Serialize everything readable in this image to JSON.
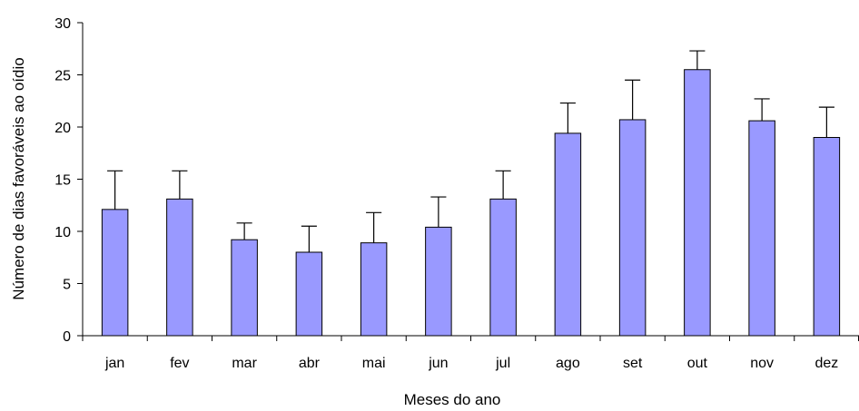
{
  "chart_data": {
    "type": "bar",
    "title": "",
    "xlabel": "Meses do ano",
    "ylabel": "Número de dias favoráveis ao oídio",
    "categories": [
      "jan",
      "fev",
      "mar",
      "abr",
      "mai",
      "jun",
      "jul",
      "ago",
      "set",
      "out",
      "nov",
      "dez"
    ],
    "values": [
      12.1,
      13.1,
      9.2,
      8.0,
      8.9,
      10.4,
      13.1,
      19.4,
      20.7,
      25.5,
      20.6,
      19.0
    ],
    "error_upper": [
      3.7,
      2.7,
      1.6,
      2.5,
      2.9,
      2.9,
      2.7,
      2.9,
      3.8,
      1.8,
      2.1,
      2.9
    ],
    "ylim": [
      0,
      30
    ],
    "yticks": [
      0,
      5,
      10,
      15,
      20,
      25,
      30
    ],
    "grid": false,
    "bar_color": "#9999FF",
    "bar_edge_color": "#000000"
  }
}
